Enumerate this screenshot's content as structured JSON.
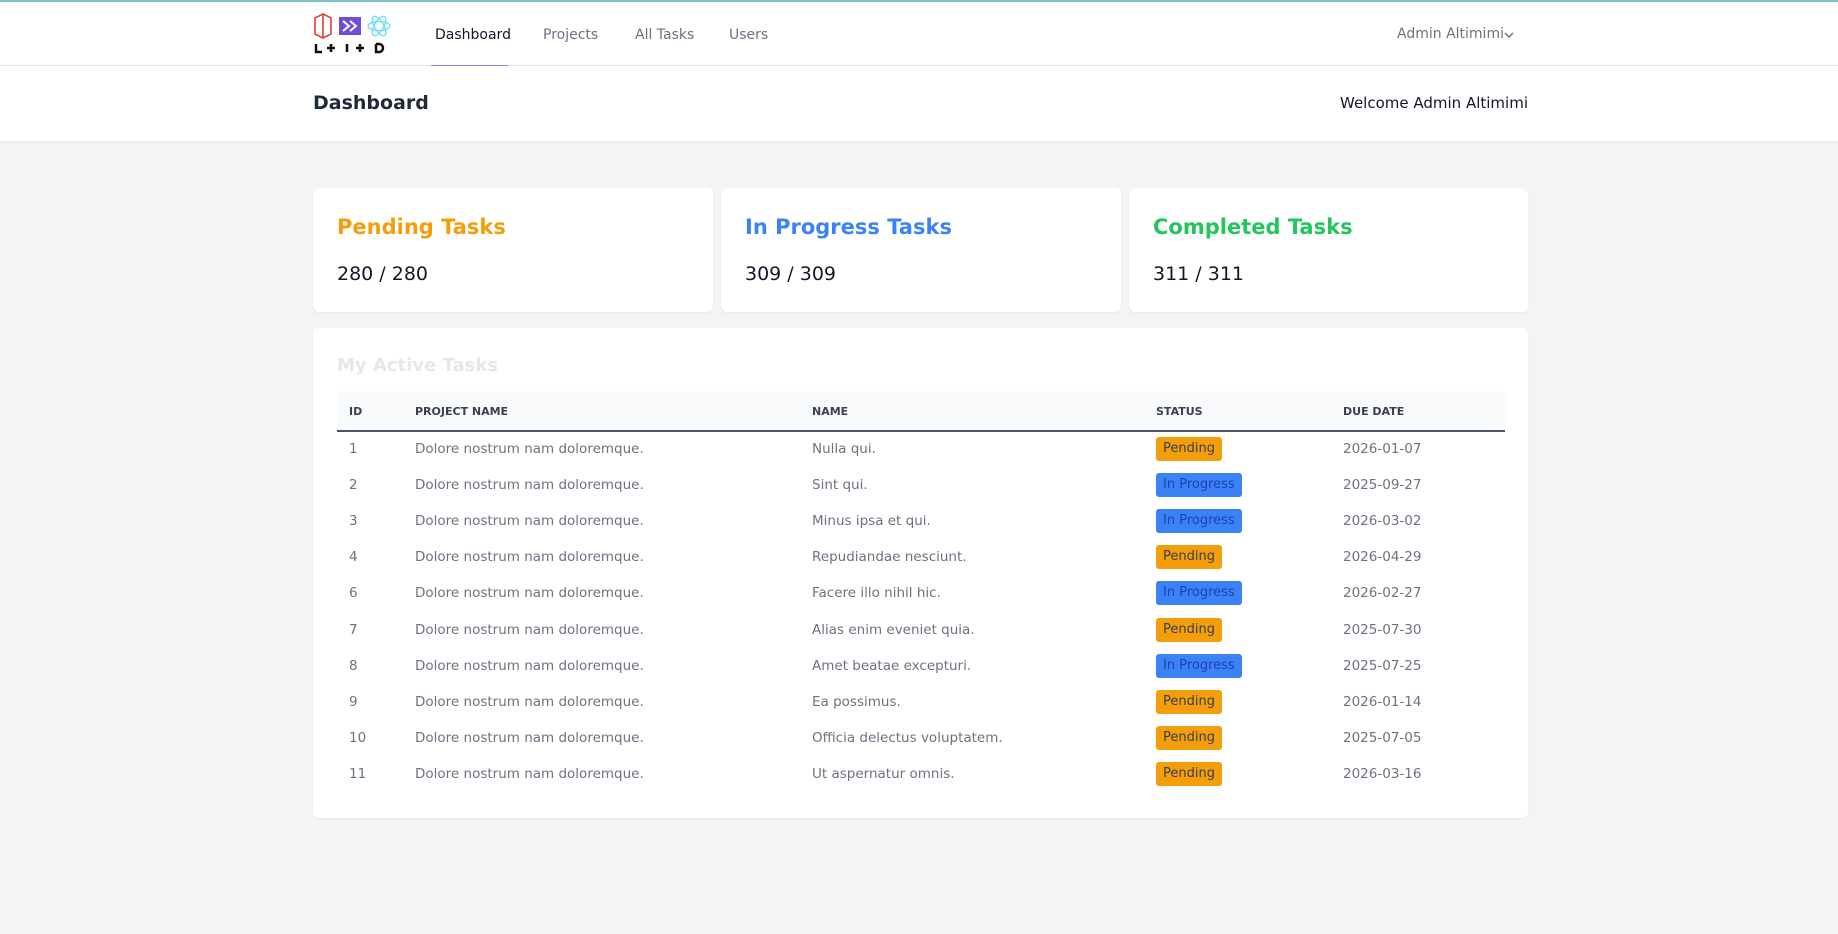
{
  "nav": {
    "links": [
      "Dashboard",
      "Projects",
      "All Tasks",
      "Users"
    ],
    "user": "Admin Altimimi"
  },
  "header": {
    "title": "Dashboard",
    "welcome": "Welcome Admin Altimimi"
  },
  "cards": [
    {
      "title": "Pending Tasks",
      "count": "280 / 280"
    },
    {
      "title": "In Progress Tasks",
      "count": "309 / 309"
    },
    {
      "title": "Completed Tasks",
      "count": "311 / 311"
    }
  ],
  "table": {
    "title": "My Active Tasks",
    "columns": [
      "ID",
      "PROJECT NAME",
      "NAME",
      "STATUS",
      "DUE DATE"
    ],
    "rows": [
      [
        "1",
        "Dolore nostrum nam doloremque.",
        "Nulla qui.",
        "Pending",
        "2026-01-07"
      ],
      [
        "2",
        "Dolore nostrum nam doloremque.",
        "Sint qui.",
        "In Progress",
        "2025-09-27"
      ],
      [
        "3",
        "Dolore nostrum nam doloremque.",
        "Minus ipsa et qui.",
        "In Progress",
        "2026-03-02"
      ],
      [
        "4",
        "Dolore nostrum nam doloremque.",
        "Repudiandae nesciunt.",
        "Pending",
        "2026-04-29"
      ],
      [
        "6",
        "Dolore nostrum nam doloremque.",
        "Facere illo nihil hic.",
        "In Progress",
        "2026-02-27"
      ],
      [
        "7",
        "Dolore nostrum nam doloremque.",
        "Alias enim eveniet quia.",
        "Pending",
        "2025-07-30"
      ],
      [
        "8",
        "Dolore nostrum nam doloremque.",
        "Amet beatae excepturi.",
        "In Progress",
        "2025-07-25"
      ],
      [
        "9",
        "Dolore nostrum nam doloremque.",
        "Ea possimus.",
        "Pending",
        "2026-01-14"
      ],
      [
        "10",
        "Dolore nostrum nam doloremque.",
        "Officia delectus voluptatem.",
        "Pending",
        "2025-07-05"
      ],
      [
        "11",
        "Dolore nostrum nam doloremque.",
        "Ut aspernatur omnis.",
        "Pending",
        "2026-03-16"
      ]
    ]
  }
}
